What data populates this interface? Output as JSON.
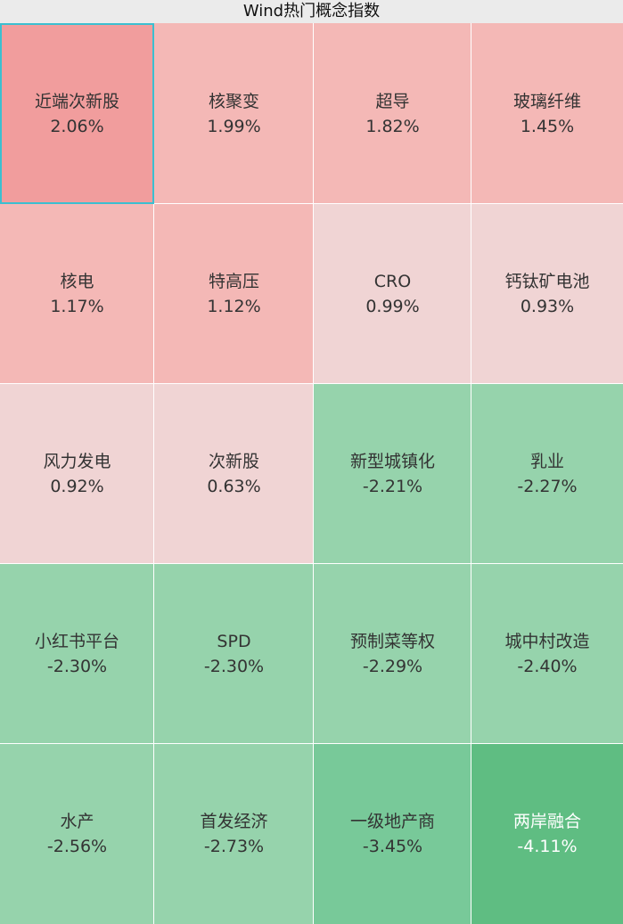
{
  "chart_data": {
    "type": "heatmap",
    "title": "Wind热门概念指数",
    "columns": 4,
    "items": [
      {
        "name": "近端次新股",
        "value": "2.06%",
        "color": "#f19d9d",
        "selected": true
      },
      {
        "name": "核聚变",
        "value": "1.99%",
        "color": "#f4b8b6"
      },
      {
        "name": "超导",
        "value": "1.82%",
        "color": "#f4b8b6"
      },
      {
        "name": "玻璃纤维",
        "value": "1.45%",
        "color": "#f4b8b6"
      },
      {
        "name": "核电",
        "value": "1.17%",
        "color": "#f4b8b6"
      },
      {
        "name": "特高压",
        "value": "1.12%",
        "color": "#f4b8b6"
      },
      {
        "name": "CRO",
        "value": "0.99%",
        "color": "#f0d4d4"
      },
      {
        "name": "钙钛矿电池",
        "value": "0.93%",
        "color": "#f0d4d4"
      },
      {
        "name": "风力发电",
        "value": "0.92%",
        "color": "#f0d4d4"
      },
      {
        "name": "次新股",
        "value": "0.63%",
        "color": "#f0d4d4"
      },
      {
        "name": "新型城镇化",
        "value": "-2.21%",
        "color": "#96d3ac"
      },
      {
        "name": "乳业",
        "value": "-2.27%",
        "color": "#96d3ac"
      },
      {
        "name": "小红书平台",
        "value": "-2.30%",
        "color": "#96d3ac"
      },
      {
        "name": "SPD",
        "value": "-2.30%",
        "color": "#96d3ac"
      },
      {
        "name": "预制菜等权",
        "value": "-2.29%",
        "color": "#96d3ac"
      },
      {
        "name": "城中村改造",
        "value": "-2.40%",
        "color": "#96d3ac"
      },
      {
        "name": "水产",
        "value": "-2.56%",
        "color": "#96d3ac"
      },
      {
        "name": "首发经济",
        "value": "-2.73%",
        "color": "#96d3ac"
      },
      {
        "name": "一级地产商",
        "value": "-3.45%",
        "color": "#78c999"
      },
      {
        "name": "两岸融合",
        "value": "-4.11%",
        "color": "#5fbd82",
        "text_color": "#ffffff"
      }
    ]
  }
}
